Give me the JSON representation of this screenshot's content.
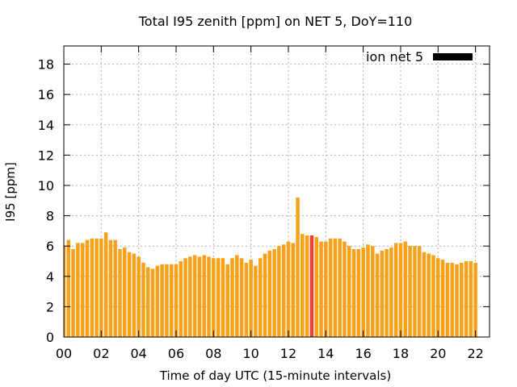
{
  "chart_data": {
    "type": "bar",
    "title": "Total I95 zenith [ppm] on NET 5, DoY=110",
    "xlabel": "Time of day UTC (15-minute intervals)",
    "ylabel": "I95 [ppm]",
    "xlim": [
      0,
      22.75
    ],
    "ylim": [
      0,
      19.2
    ],
    "x_ticks": [
      "00",
      "02",
      "04",
      "06",
      "08",
      "10",
      "12",
      "14",
      "16",
      "18",
      "20",
      "22"
    ],
    "x_tick_hours": [
      0,
      2,
      4,
      6,
      8,
      10,
      12,
      14,
      16,
      18,
      20,
      22
    ],
    "y_ticks": [
      "0",
      "2",
      "4",
      "6",
      "8",
      "10",
      "12",
      "14",
      "16",
      "18"
    ],
    "y_tick_values": [
      0,
      2,
      4,
      6,
      8,
      10,
      12,
      14,
      16,
      18
    ],
    "grid": true,
    "legend_position": "top-right",
    "colors": {
      "bar": "#f7a21a",
      "highlight": "#e8423a",
      "legend": "#000000"
    },
    "series": [
      {
        "name": "ion net 5",
        "interval_hours": 0.25,
        "highlight_index": 53,
        "values": [
          6.0,
          6.4,
          5.8,
          6.2,
          6.2,
          6.4,
          6.5,
          6.5,
          6.5,
          6.9,
          6.4,
          6.4,
          5.8,
          5.9,
          5.6,
          5.5,
          5.3,
          4.9,
          4.6,
          4.5,
          4.7,
          4.8,
          4.8,
          4.8,
          4.8,
          5.0,
          5.2,
          5.3,
          5.4,
          5.3,
          5.4,
          5.3,
          5.2,
          5.2,
          5.2,
          4.8,
          5.2,
          5.4,
          5.2,
          4.9,
          5.1,
          4.7,
          5.2,
          5.5,
          5.7,
          5.8,
          6.0,
          6.1,
          6.3,
          6.2,
          9.2,
          6.8,
          6.7,
          6.7,
          6.6,
          6.3,
          6.3,
          6.5,
          6.5,
          6.5,
          6.3,
          6.0,
          5.8,
          5.8,
          5.9,
          6.1,
          6.0,
          5.5,
          5.7,
          5.8,
          5.9,
          6.2,
          6.2,
          6.3,
          6.0,
          6.0,
          6.0,
          5.6,
          5.5,
          5.4,
          5.2,
          5.1,
          4.9,
          4.9,
          4.8,
          4.9,
          5.0,
          5.0,
          4.9
        ]
      }
    ]
  }
}
